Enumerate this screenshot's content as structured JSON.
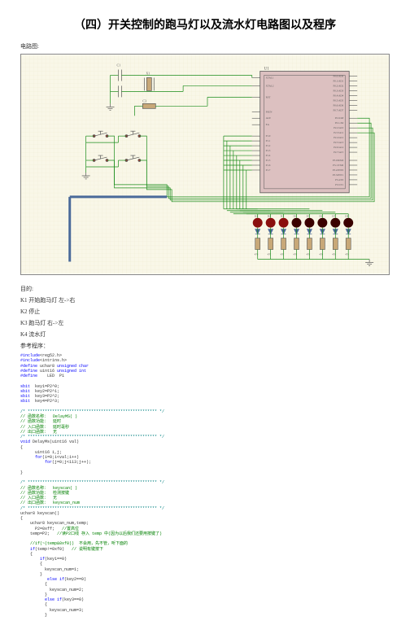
{
  "title": "（四）开关控制的跑马灯以及流水灯电路图以及程序",
  "labels": {
    "circuit_heading": "电路图:",
    "purpose": "目的:",
    "k1": "K1  开始跑马灯 左->右",
    "k2": "K2  停止",
    "k3": "K3  跑马灯 右->左",
    "k4": "K4  流水灯",
    "ref_program": "参考程序："
  },
  "circuit": {
    "bg": "#f9f7e8",
    "border": "#6a6a6a",
    "wire_green": "#1a8c1a",
    "wire_blue": "#4a6a9a",
    "chip_fill": "#dcc0c0",
    "chip_stroke": "#555555",
    "led_red": "#8a0e0e",
    "led_dark": "#3a0000",
    "resistor_fill": "#c8a878",
    "text_color": "#555555",
    "chip_label": "U1",
    "chip_pins_right": [
      "P0.0/AD0",
      "P0.1/AD1",
      "P0.2/AD2",
      "P0.3/AD3",
      "P0.4/AD4",
      "P0.5/AD5",
      "P0.6/AD6",
      "P0.7/AD7",
      "",
      "P2.0/A8",
      "P2.1/A9",
      "P2.2/A10",
      "P2.3/A11",
      "P2.4/A12",
      "P2.5/A13",
      "P2.6/A14",
      "P2.7/A15",
      "",
      "P3.0/RXD",
      "P3.1/TXD",
      "P3.2/INT0",
      "P3.3/INT1",
      "P3.4/T0",
      "P3.5/T1",
      "P3.6/WR",
      "P3.7/RD"
    ],
    "chip_pins_left": [
      "XTAL1",
      "",
      "XTAL2",
      "",
      "",
      "RST",
      "",
      "",
      "",
      "PSEN",
      "ALE",
      "EA",
      "",
      "",
      "",
      "P1.0",
      "P1.1",
      "P1.2",
      "P1.3",
      "P1.4",
      "P1.5",
      "P1.6",
      "P1.7"
    ],
    "led_labels": [
      "D1",
      "D2",
      "D3",
      "D4",
      "D5",
      "D6",
      "D7",
      "D8"
    ],
    "resistor_labels": [
      "R1",
      "R2",
      "R3",
      "R4",
      "R5",
      "R6",
      "R7",
      "R8"
    ],
    "resistor_values": [
      "470",
      "470",
      "470",
      "470",
      "470",
      "470",
      "470",
      "470"
    ],
    "crystal_label": "X1",
    "cap_labels": [
      "C1",
      "C2",
      "C3"
    ],
    "switch_count": 4
  },
  "code": {
    "lines": [
      {
        "segments": [
          {
            "t": "#include",
            "cls": "c-define"
          },
          {
            "t": "<reg52.h>",
            "cls": ""
          }
        ]
      },
      {
        "segments": [
          {
            "t": "#include",
            "cls": "c-define"
          },
          {
            "t": "<intrins.h>",
            "cls": ""
          }
        ]
      },
      {
        "segments": [
          {
            "t": "#define",
            "cls": "c-define"
          },
          {
            "t": " uchar8 ",
            "cls": ""
          },
          {
            "t": "unsigned char",
            "cls": "c-type"
          }
        ]
      },
      {
        "segments": [
          {
            "t": "#define",
            "cls": "c-define"
          },
          {
            "t": " uint16 ",
            "cls": ""
          },
          {
            "t": "unsigned int",
            "cls": "c-type"
          }
        ]
      },
      {
        "segments": [
          {
            "t": "#define",
            "cls": "c-define"
          },
          {
            "t": "    LED  P1",
            "cls": ""
          }
        ]
      },
      {
        "segments": [
          {
            "t": "",
            "cls": ""
          }
        ]
      },
      {
        "segments": [
          {
            "t": "sbit",
            "cls": "c-type"
          },
          {
            "t": "  key1=P2^0;",
            "cls": ""
          }
        ]
      },
      {
        "segments": [
          {
            "t": "sbit",
            "cls": "c-type"
          },
          {
            "t": "  key2=P2^1;",
            "cls": ""
          }
        ]
      },
      {
        "segments": [
          {
            "t": "sbit",
            "cls": "c-type"
          },
          {
            "t": "  key3=P2^2;",
            "cls": ""
          }
        ]
      },
      {
        "segments": [
          {
            "t": "sbit",
            "cls": "c-type"
          },
          {
            "t": "  key4=P2^3;",
            "cls": ""
          }
        ]
      },
      {
        "segments": [
          {
            "t": "",
            "cls": ""
          }
        ]
      },
      {
        "segments": [
          {
            "t": "/* ***************************************************** */",
            "cls": "c-dash"
          }
        ]
      },
      {
        "segments": [
          {
            "t": "// 函数名称：  DelayMS( )",
            "cls": "c-comment"
          }
        ]
      },
      {
        "segments": [
          {
            "t": "// 函数功能：  延时",
            "cls": "c-comment"
          }
        ]
      },
      {
        "segments": [
          {
            "t": "// 入口函数：  延时毫秒",
            "cls": "c-comment"
          }
        ]
      },
      {
        "segments": [
          {
            "t": "// 出口函数：  无",
            "cls": "c-comment"
          }
        ]
      },
      {
        "segments": [
          {
            "t": "/* ***************************************************** */",
            "cls": "c-dash"
          }
        ]
      },
      {
        "segments": [
          {
            "t": "void",
            "cls": "c-type"
          },
          {
            "t": " DelayMs(uint16 val)",
            "cls": ""
          }
        ]
      },
      {
        "segments": [
          {
            "t": "{",
            "cls": ""
          }
        ]
      },
      {
        "segments": [
          {
            "t": "      uint16 i,j;",
            "cls": ""
          }
        ]
      },
      {
        "segments": [
          {
            "t": "      ",
            "cls": ""
          },
          {
            "t": "for",
            "cls": "c-keyword"
          },
          {
            "t": "(i=0;i<val;i++)",
            "cls": ""
          }
        ]
      },
      {
        "segments": [
          {
            "t": "          ",
            "cls": ""
          },
          {
            "t": "for",
            "cls": "c-keyword"
          },
          {
            "t": "(j=0;j<113;j++);",
            "cls": ""
          }
        ]
      },
      {
        "segments": [
          {
            "t": "",
            "cls": ""
          }
        ]
      },
      {
        "segments": [
          {
            "t": "}",
            "cls": ""
          }
        ]
      },
      {
        "segments": [
          {
            "t": "",
            "cls": ""
          }
        ]
      },
      {
        "segments": [
          {
            "t": "/* ***************************************************** */",
            "cls": "c-dash"
          }
        ]
      },
      {
        "segments": [
          {
            "t": "// 函数名称：  keyscan( )",
            "cls": "c-comment"
          }
        ]
      },
      {
        "segments": [
          {
            "t": "// 函数功能：  检测按键",
            "cls": "c-comment"
          }
        ]
      },
      {
        "segments": [
          {
            "t": "// 入口函数：  无",
            "cls": "c-comment"
          }
        ]
      },
      {
        "segments": [
          {
            "t": "// 出口函数：  keyscan_num",
            "cls": "c-comment"
          }
        ]
      },
      {
        "segments": [
          {
            "t": "/* ***************************************************** */",
            "cls": "c-dash"
          }
        ]
      },
      {
        "segments": [
          {
            "t": "uchar8 keyscan()",
            "cls": ""
          }
        ]
      },
      {
        "segments": [
          {
            "t": "{",
            "cls": ""
          }
        ]
      },
      {
        "segments": [
          {
            "t": "    uchar8 keyscan_num,temp;",
            "cls": ""
          }
        ]
      },
      {
        "segments": [
          {
            "t": "      P2=0xff;   ",
            "cls": ""
          },
          {
            "t": "//置高位",
            "cls": "c-comment"
          }
        ]
      },
      {
        "segments": [
          {
            "t": "    temp=P2;   ",
            "cls": ""
          },
          {
            "t": "//读P2口线 存入 temp 中(因为以后我们还要用按键了)",
            "cls": "c-comment"
          }
        ]
      },
      {
        "segments": [
          {
            "t": "",
            "cls": ""
          }
        ]
      },
      {
        "segments": [
          {
            "t": "    ",
            "cls": ""
          },
          {
            "t": "//if(~(temp&0xf0))  不会用，先不管，听下面的",
            "cls": "c-comment"
          }
        ]
      },
      {
        "segments": [
          {
            "t": "    ",
            "cls": ""
          },
          {
            "t": "if",
            "cls": "c-keyword"
          },
          {
            "t": "(temp!=0xf0)   ",
            "cls": ""
          },
          {
            "t": "// 说明有键按下",
            "cls": "c-comment"
          }
        ]
      },
      {
        "segments": [
          {
            "t": "    {",
            "cls": ""
          }
        ]
      },
      {
        "segments": [
          {
            "t": "        ",
            "cls": ""
          },
          {
            "t": "if",
            "cls": "c-keyword"
          },
          {
            "t": "(key1==0)",
            "cls": ""
          }
        ]
      },
      {
        "segments": [
          {
            "t": "        {",
            "cls": ""
          }
        ]
      },
      {
        "segments": [
          {
            "t": "          keyscan_num=1;",
            "cls": ""
          }
        ]
      },
      {
        "segments": [
          {
            "t": "        }",
            "cls": ""
          }
        ]
      },
      {
        "segments": [
          {
            "t": "           ",
            "cls": ""
          },
          {
            "t": "else if",
            "cls": "c-keyword"
          },
          {
            "t": "(key2==0)",
            "cls": ""
          }
        ]
      },
      {
        "segments": [
          {
            "t": "          {",
            "cls": ""
          }
        ]
      },
      {
        "segments": [
          {
            "t": "            keyscan_num=2;",
            "cls": ""
          }
        ]
      },
      {
        "segments": [
          {
            "t": "          }",
            "cls": ""
          }
        ]
      },
      {
        "segments": [
          {
            "t": "          ",
            "cls": ""
          },
          {
            "t": "else if",
            "cls": "c-keyword"
          },
          {
            "t": "(key3==0)",
            "cls": ""
          }
        ]
      },
      {
        "segments": [
          {
            "t": "          {",
            "cls": ""
          }
        ]
      },
      {
        "segments": [
          {
            "t": "            keyscan_num=3;",
            "cls": ""
          }
        ]
      },
      {
        "segments": [
          {
            "t": "          }",
            "cls": ""
          }
        ]
      }
    ]
  }
}
